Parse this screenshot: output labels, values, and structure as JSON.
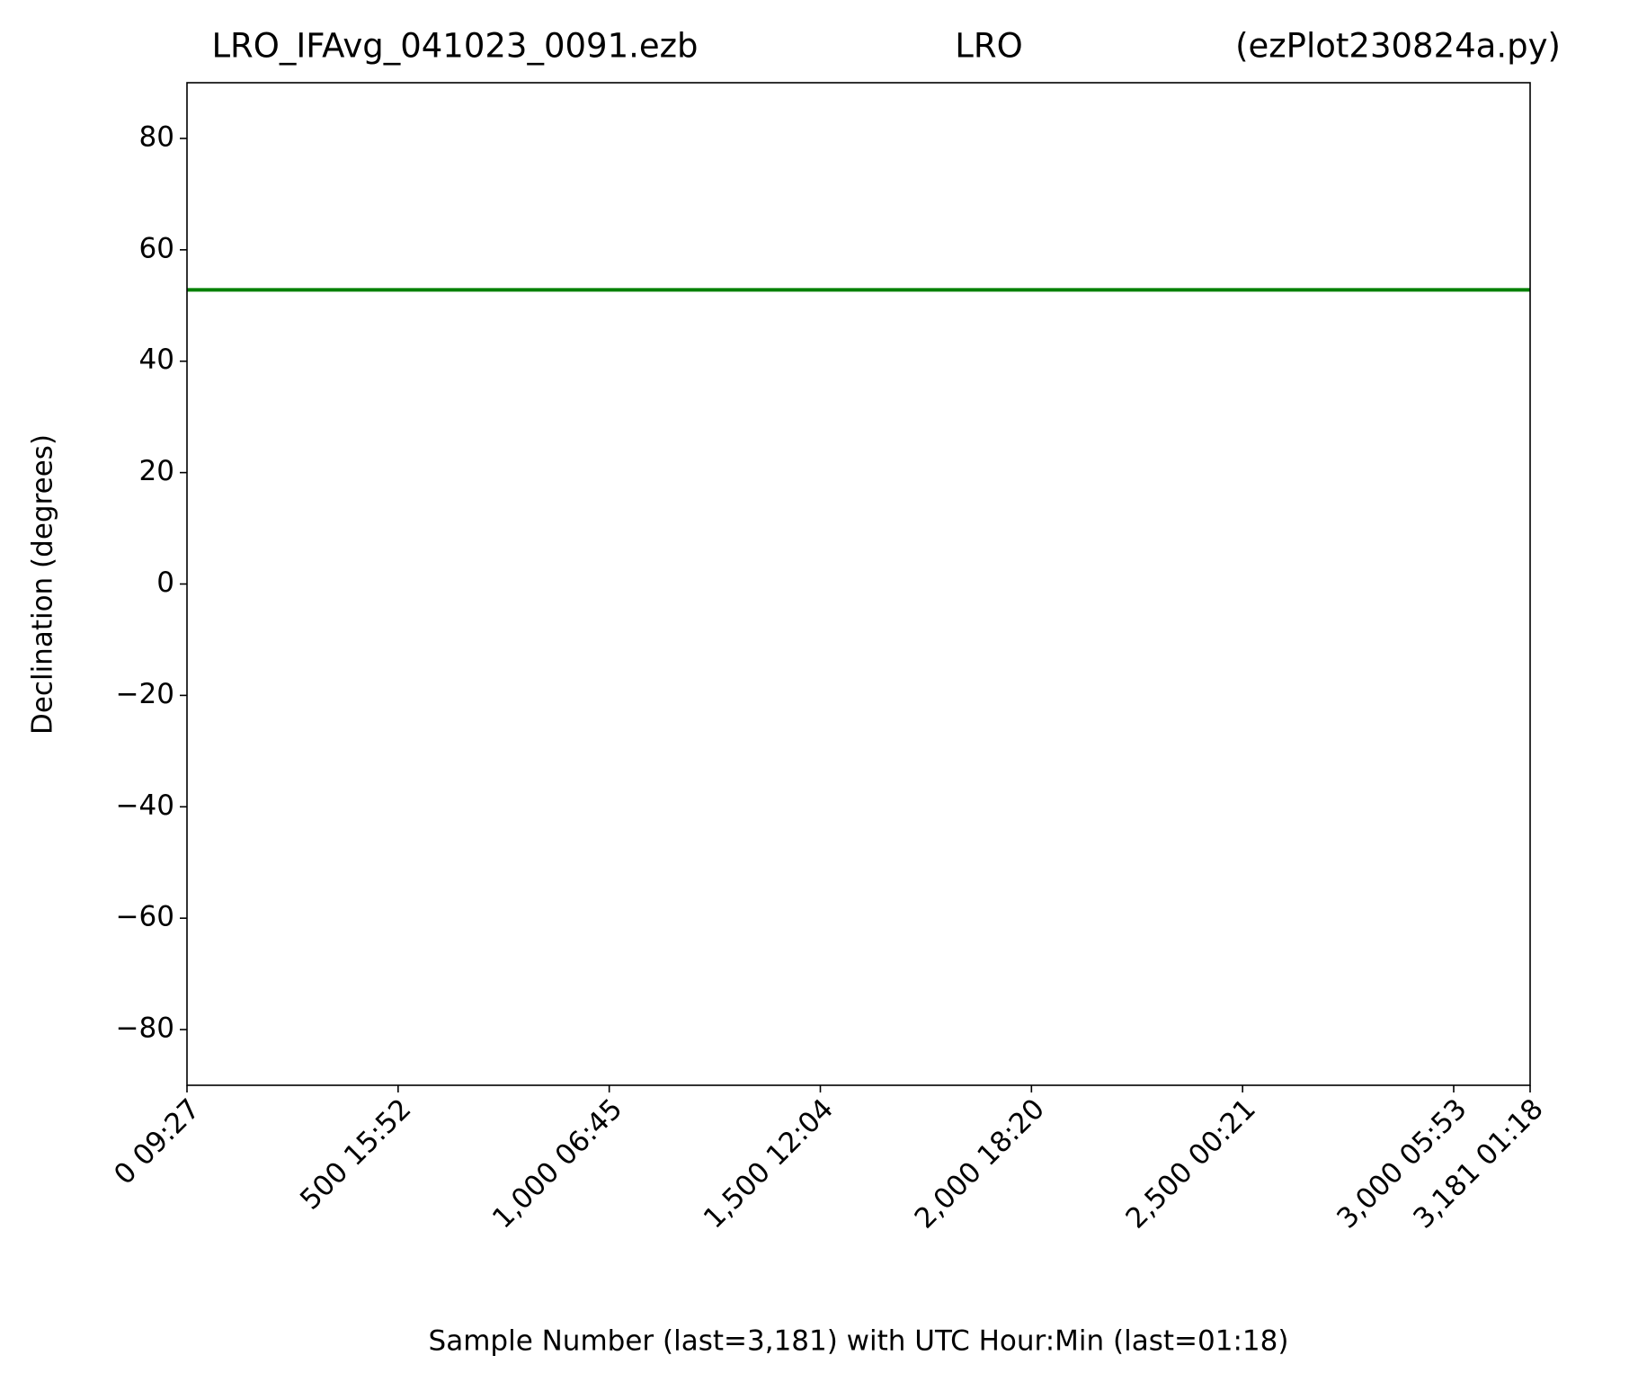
{
  "chart_data": {
    "type": "line",
    "title": [
      "LRO_IFAvg_041023_0091.ezb",
      "LRO",
      "(ezPlot230824a.py)"
    ],
    "x_label": "Sample Number (last=3,181) with UTC Hour:Min (last=01:18)",
    "y_label": "Declination (degrees)",
    "x": [
      0,
      3181
    ],
    "series": [
      {
        "color": "#008000",
        "values": [
          52.8,
          52.8
        ]
      }
    ],
    "xlim": [
      0,
      3181
    ],
    "xticks": [
      {
        "value": 0,
        "label": "0  09:27"
      },
      {
        "value": 500,
        "label": "500  15:52"
      },
      {
        "value": 1000,
        "label": "1,000  06:45"
      },
      {
        "value": 1500,
        "label": "1,500  12:04"
      },
      {
        "value": 2000,
        "label": "2,000  18:20"
      },
      {
        "value": 2500,
        "label": "2,500  00:21"
      },
      {
        "value": 3000,
        "label": "3,000  05:53"
      },
      {
        "value": 3181,
        "label": "3,181  01:18"
      }
    ],
    "ylim": [
      -90,
      90
    ],
    "yticks": [
      {
        "value": -80,
        "label": "−80"
      },
      {
        "value": -60,
        "label": "−60"
      },
      {
        "value": -40,
        "label": "−40"
      },
      {
        "value": -20,
        "label": "−20"
      },
      0,
      20,
      40,
      60,
      80
    ],
    "grid": false
  }
}
